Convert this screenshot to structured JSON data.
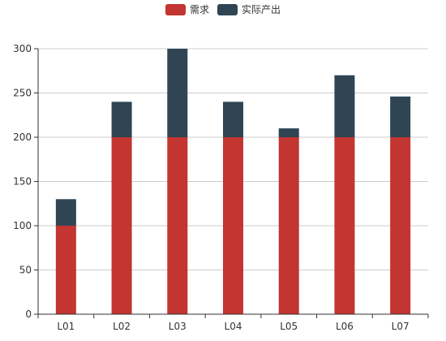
{
  "chart_data": {
    "type": "bar",
    "stacked": true,
    "categories": [
      "L01",
      "L02",
      "L03",
      "L04",
      "L05",
      "L06",
      "L07"
    ],
    "series": [
      {
        "name": "需求",
        "values": [
          100,
          200,
          200,
          200,
          200,
          200,
          200
        ],
        "color": "#c23531"
      },
      {
        "name": "实际产出",
        "values": [
          30,
          40,
          100,
          40,
          10,
          70,
          46
        ],
        "color": "#2f4554"
      }
    ],
    "ylim": [
      0,
      300
    ],
    "yticks": [
      0,
      50,
      100,
      150,
      200,
      250,
      300
    ],
    "grid": true,
    "legend_position": "top-center"
  }
}
